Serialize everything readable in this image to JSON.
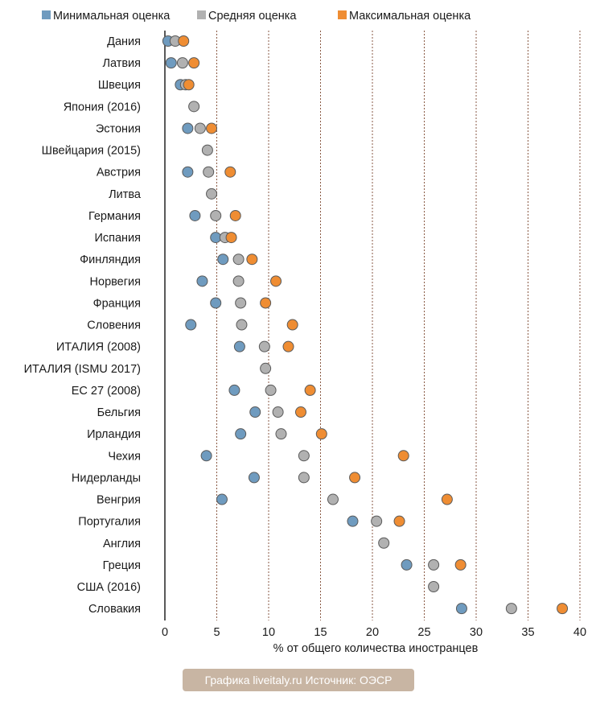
{
  "chart_data": {
    "type": "scatter",
    "legend_placement": "top",
    "xlabel": "% от общего количества иностранцев",
    "xlim": [
      0,
      40
    ],
    "xticks": [
      0,
      5,
      10,
      15,
      20,
      25,
      30,
      35,
      40
    ],
    "grid": "vertical dotted",
    "categories": [
      "Дания",
      "Латвия",
      "Швеция",
      "Япония (2016)",
      "Эстония",
      "Швейцария (2015)",
      "Австрия",
      "Литва",
      "Германия",
      "Испания",
      "Финляндия",
      "Норвегия",
      "Франция",
      "Словения",
      "ИТАЛИЯ (2008)",
      "ИТАЛИЯ (ISMU 2017)",
      "ЕС 27 (2008)",
      "Бельгия",
      "Ирландия",
      "Чехия",
      "Нидерланды",
      "Венгрия",
      "Португалия",
      "Англия",
      "Греция",
      "США (2016)",
      "Словакия"
    ],
    "series": [
      {
        "name": "Минимальная оценка",
        "color": "#6f9bbf",
        "values": [
          0.3,
          0.6,
          1.5,
          null,
          2.2,
          null,
          2.2,
          null,
          2.9,
          4.9,
          5.6,
          3.6,
          4.9,
          2.5,
          7.2,
          null,
          6.7,
          8.7,
          7.3,
          4.0,
          8.6,
          5.5,
          18.1,
          null,
          23.3,
          null,
          28.6
        ]
      },
      {
        "name": "Средняя оценка",
        "color": "#b1b1b1",
        "values": [
          1.0,
          1.7,
          2.0,
          2.8,
          3.4,
          4.1,
          4.2,
          4.5,
          4.9,
          5.8,
          7.1,
          7.1,
          7.3,
          7.4,
          9.6,
          9.7,
          10.2,
          10.9,
          11.2,
          13.4,
          13.4,
          16.2,
          20.4,
          21.1,
          25.9,
          25.9,
          33.4
        ]
      },
      {
        "name": "Максимальная оценка",
        "color": "#ef8d33",
        "values": [
          1.8,
          2.8,
          2.3,
          null,
          4.5,
          null,
          6.3,
          null,
          6.8,
          6.4,
          8.4,
          10.7,
          9.7,
          12.3,
          11.9,
          null,
          14.0,
          13.1,
          15.1,
          23.0,
          18.3,
          27.2,
          22.6,
          null,
          28.5,
          null,
          38.3
        ]
      }
    ]
  },
  "source_note": "Графика liveitaly.ru Источник: ОЭСР"
}
